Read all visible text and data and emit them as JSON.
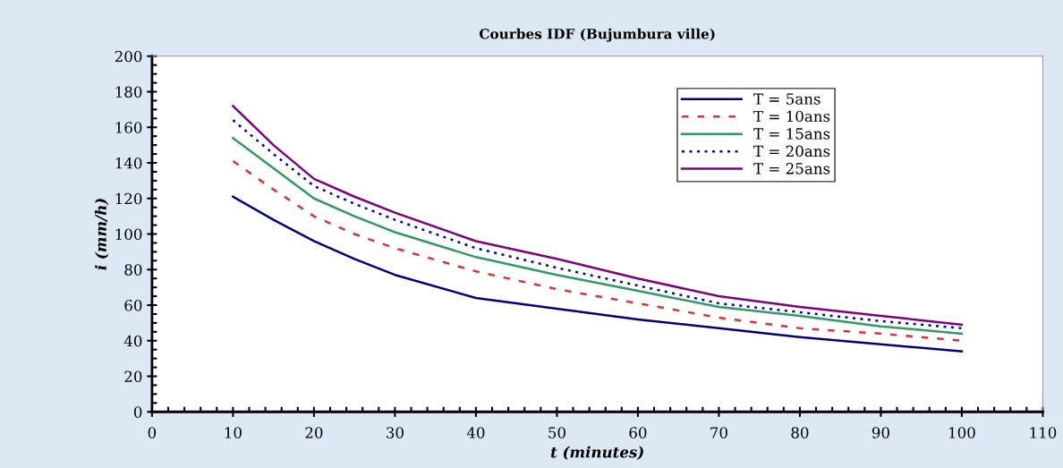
{
  "chart_data": {
    "type": "line",
    "title": "Courbes IDF (Bujumbura ville)",
    "xlabel": "t (minutes)",
    "ylabel": "i (mm/h)",
    "x": [
      10,
      15,
      20,
      25,
      30,
      40,
      50,
      60,
      70,
      80,
      90,
      100
    ],
    "series": [
      {
        "name": "T = 5ans",
        "color": "#000080",
        "line_style": "solid",
        "values": [
          121,
          108,
          96,
          86,
          77,
          64,
          58,
          52,
          47,
          42,
          38,
          34
        ]
      },
      {
        "name": "T = 10ans",
        "color": "#e03030",
        "line_style": "dashed",
        "values": [
          141,
          125,
          110,
          100,
          92,
          79,
          69,
          61,
          53,
          47,
          44,
          40
        ]
      },
      {
        "name": "T = 15ans",
        "color": "#339966",
        "line_style": "solid",
        "values": [
          154,
          137,
          120,
          110,
          101,
          87,
          77,
          68,
          59,
          54,
          48,
          44
        ]
      },
      {
        "name": "T = 20ans",
        "color": "#0000cc",
        "line_style": "dotted",
        "values": [
          164,
          145,
          127,
          117,
          108,
          92,
          81,
          71,
          61,
          56,
          51,
          47
        ]
      },
      {
        "name": "T = 25ans",
        "color": "#800080",
        "line_style": "solid",
        "values": [
          172,
          150,
          131,
          121,
          112,
          96,
          86,
          75,
          65,
          59,
          54,
          49
        ]
      }
    ],
    "xlim": [
      0,
      110
    ],
    "xticks": [
      0,
      10,
      20,
      30,
      40,
      50,
      60,
      70,
      80,
      90,
      100,
      110
    ],
    "ylim": [
      0,
      200
    ],
    "yticks": [
      0,
      20,
      40,
      60,
      80,
      100,
      120,
      140,
      160,
      180,
      200
    ],
    "grid": false,
    "legend": "top right",
    "marker": "none"
  }
}
